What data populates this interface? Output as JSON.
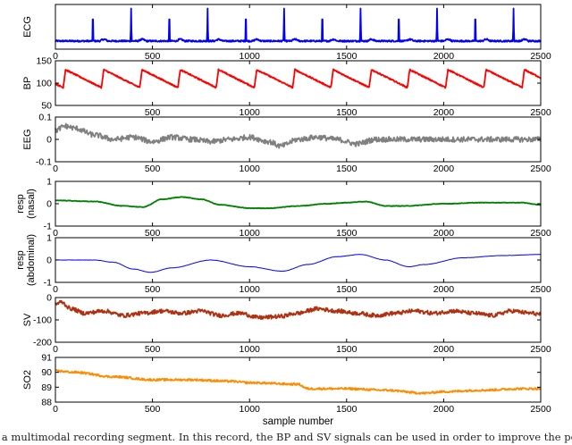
{
  "chart_data": [
    {
      "type": "line",
      "ylabel": [
        "ECG"
      ],
      "xlim": [
        0,
        2500
      ],
      "ylim": [
        -0.1,
        1.0
      ],
      "xticks": [
        "0",
        "500",
        "1000",
        "1500",
        "2000",
        "2500"
      ],
      "yticks": [],
      "color": "#0000ff",
      "pattern": {
        "kind": "spikes",
        "baseline": 0.1,
        "peak": 0.9,
        "period": 197,
        "start": 190,
        "noise": 0.02
      }
    },
    {
      "type": "line",
      "ylabel": [
        "BP"
      ],
      "xlim": [
        0,
        2500
      ],
      "ylim": [
        50,
        150
      ],
      "xticks": [
        "500",
        "1000",
        "1500",
        "2000",
        "2500"
      ],
      "yticks": [
        "50",
        "100",
        "150"
      ],
      "color": "#ff0000",
      "pattern": {
        "kind": "sawtooth",
        "low": 90,
        "high": 130,
        "period": 197,
        "start": 40
      }
    },
    {
      "type": "line",
      "ylabel": [
        "EEG"
      ],
      "xlim": [
        0,
        2500
      ],
      "ylim": [
        -0.1,
        0.1
      ],
      "xticks": [
        "0",
        "500",
        "1000",
        "1500",
        "2000",
        "2500"
      ],
      "yticks": [
        "-0.1",
        "0",
        "0.1"
      ],
      "color": "#808080",
      "points": [
        [
          0,
          0.04
        ],
        [
          50,
          0.06
        ],
        [
          100,
          0.05
        ],
        [
          200,
          0.02
        ],
        [
          300,
          0.0
        ],
        [
          400,
          0.01
        ],
        [
          500,
          -0.01
        ],
        [
          600,
          0.01
        ],
        [
          700,
          0.0
        ],
        [
          800,
          -0.01
        ],
        [
          900,
          0.0
        ],
        [
          1000,
          0.01
        ],
        [
          1100,
          -0.01
        ],
        [
          1160,
          -0.03
        ],
        [
          1250,
          0.0
        ],
        [
          1350,
          0.01
        ],
        [
          1450,
          0.0
        ],
        [
          1550,
          -0.02
        ],
        [
          1650,
          0.0
        ],
        [
          1800,
          0.0
        ],
        [
          2000,
          0.0
        ],
        [
          2200,
          0.0
        ],
        [
          2400,
          0.0
        ],
        [
          2500,
          0.0
        ]
      ],
      "noise": 0.012
    },
    {
      "type": "line",
      "ylabel": [
        "resp",
        "(nasal)"
      ],
      "xlim": [
        0,
        2500
      ],
      "ylim": [
        -1,
        1
      ],
      "xticks": [
        "0",
        "500",
        "1000",
        "1500",
        "2000",
        "2500"
      ],
      "yticks": [
        "-1",
        "0",
        "1"
      ],
      "color": "#008000",
      "points": [
        [
          0,
          0.15
        ],
        [
          200,
          0.1
        ],
        [
          350,
          -0.1
        ],
        [
          450,
          -0.15
        ],
        [
          550,
          0.2
        ],
        [
          650,
          0.3
        ],
        [
          750,
          0.2
        ],
        [
          850,
          -0.05
        ],
        [
          1000,
          -0.2
        ],
        [
          1100,
          -0.2
        ],
        [
          1250,
          -0.1
        ],
        [
          1400,
          0.0
        ],
        [
          1500,
          0.05
        ],
        [
          1600,
          0.1
        ],
        [
          1700,
          -0.1
        ],
        [
          1800,
          -0.1
        ],
        [
          2000,
          0.0
        ],
        [
          2200,
          0.05
        ],
        [
          2400,
          0.05
        ],
        [
          2500,
          -0.05
        ]
      ],
      "noise": 0.012
    },
    {
      "type": "line",
      "ylabel": [
        "resp",
        "(abdominal)"
      ],
      "xlim": [
        0,
        2500
      ],
      "ylim": [
        -1,
        1
      ],
      "xticks": [
        "0",
        "500",
        "1000",
        "1500",
        "2000",
        "2500"
      ],
      "yticks": [
        "-1",
        "0",
        "1"
      ],
      "color": "#0000ff",
      "points": [
        [
          0,
          0.0
        ],
        [
          200,
          0.0
        ],
        [
          300,
          -0.1
        ],
        [
          400,
          -0.4
        ],
        [
          490,
          -0.55
        ],
        [
          600,
          -0.35
        ],
        [
          800,
          0.0
        ],
        [
          1000,
          -0.3
        ],
        [
          1170,
          -0.5
        ],
        [
          1300,
          -0.2
        ],
        [
          1450,
          0.15
        ],
        [
          1570,
          0.25
        ],
        [
          1700,
          0.0
        ],
        [
          1820,
          -0.3
        ],
        [
          1900,
          -0.2
        ],
        [
          2100,
          0.1
        ],
        [
          2300,
          0.2
        ],
        [
          2500,
          0.25
        ]
      ],
      "noise": 0.006
    },
    {
      "type": "line",
      "ylabel": [
        "SV"
      ],
      "xlim": [
        0,
        2500
      ],
      "ylim": [
        -200,
        0
      ],
      "xticks": [
        "0",
        "500",
        "1000",
        "1500",
        "2000",
        "2500"
      ],
      "yticks": [
        "-200",
        "-100",
        "0"
      ],
      "color": "#b03010",
      "points": [
        [
          0,
          -30
        ],
        [
          30,
          -20
        ],
        [
          80,
          -50
        ],
        [
          150,
          -70
        ],
        [
          250,
          -60
        ],
        [
          350,
          -80
        ],
        [
          450,
          -70
        ],
        [
          550,
          -60
        ],
        [
          650,
          -70
        ],
        [
          750,
          -60
        ],
        [
          850,
          -80
        ],
        [
          950,
          -70
        ],
        [
          1050,
          -90
        ],
        [
          1150,
          -85
        ],
        [
          1250,
          -70
        ],
        [
          1350,
          -50
        ],
        [
          1450,
          -60
        ],
        [
          1550,
          -70
        ],
        [
          1650,
          -80
        ],
        [
          1750,
          -70
        ],
        [
          1850,
          -60
        ],
        [
          1950,
          -70
        ],
        [
          2050,
          -60
        ],
        [
          2150,
          -70
        ],
        [
          2250,
          -80
        ],
        [
          2350,
          -60
        ],
        [
          2450,
          -70
        ],
        [
          2500,
          -75
        ]
      ],
      "noise": 9
    },
    {
      "type": "line",
      "ylabel": [
        "SO2"
      ],
      "xlabel": "sample number",
      "xlim": [
        0,
        2500
      ],
      "ylim": [
        88,
        91
      ],
      "xticks": [
        "0",
        "500",
        "1000",
        "1500",
        "2000",
        "2500"
      ],
      "yticks": [
        "88",
        "89",
        "90",
        "91"
      ],
      "color": "#ff8c00",
      "points": [
        [
          0,
          90.1
        ],
        [
          100,
          90.0
        ],
        [
          300,
          89.7
        ],
        [
          500,
          89.5
        ],
        [
          700,
          89.5
        ],
        [
          900,
          89.4
        ],
        [
          1000,
          89.3
        ],
        [
          1250,
          89.2
        ],
        [
          1300,
          88.9
        ],
        [
          1500,
          88.9
        ],
        [
          1700,
          88.8
        ],
        [
          1900,
          88.6
        ],
        [
          2000,
          88.7
        ],
        [
          2200,
          88.8
        ],
        [
          2400,
          88.9
        ],
        [
          2500,
          88.9
        ]
      ],
      "noise": 0.07
    }
  ],
  "caption": "f a multimodal recording segment. In this record, the BP and SV signals can be used in order to improve the performance of the beat"
}
